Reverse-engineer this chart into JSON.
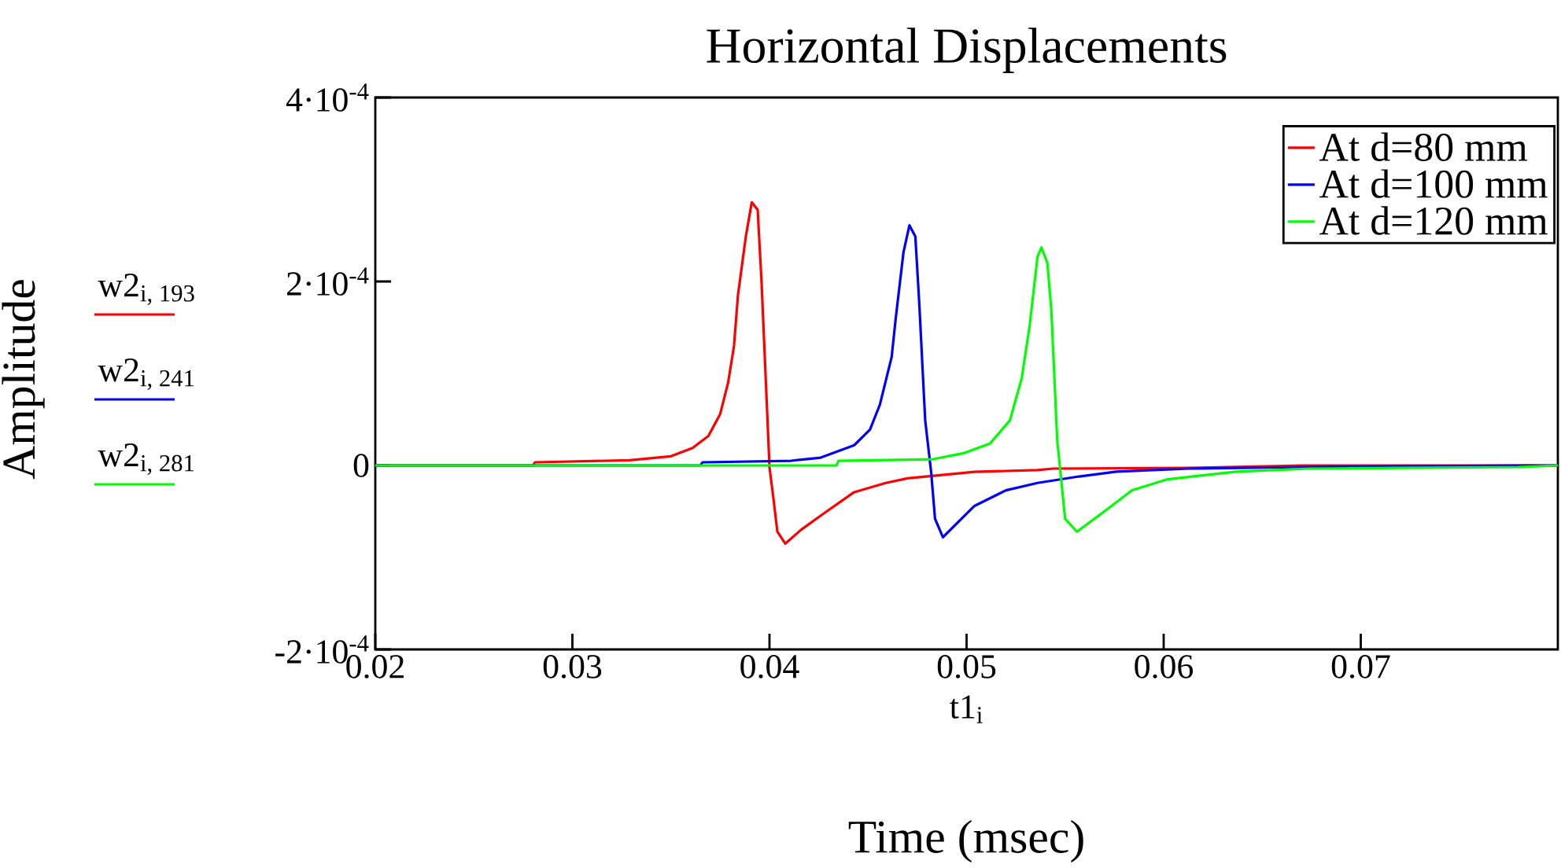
{
  "chart_data": {
    "type": "line",
    "title": "Horizontal Displacements",
    "xlabel": "t1$_{i}$",
    "ylabel": "Amplitude",
    "annotations": [
      "w2$_{i, 193}$",
      "w2$_{i, 241}$",
      "w2$_{i, 281}$",
      "Time (msec)"
    ],
    "xlim": [
      0.02,
      0.08
    ],
    "xticks": [
      0.02,
      0.03,
      0.04,
      0.05,
      0.06,
      0.07
    ],
    "ylim": [
      -0.0002,
      0.0004
    ],
    "yticks": [
      {
        "value": -0.0002,
        "label": "-2·10$^{-4}$"
      },
      {
        "value": 0,
        "label": "0"
      },
      {
        "value": 0.0002,
        "label": "2·10$^{-4}$"
      },
      {
        "value": 0.0004,
        "label": "4·10$^{-4}$"
      }
    ],
    "grid": false,
    "legend": "top right",
    "marker": "none",
    "line_style": "solid",
    "series": [
      {
        "name": "At d=80 mm",
        "color": "#ff0000",
        "x": [
          0.02,
          0.028,
          0.0281,
          0.0329,
          0.035,
          0.0361,
          0.0369,
          0.0375,
          0.0379,
          0.0382,
          0.0384,
          0.0388,
          0.0391,
          0.0394,
          0.0396,
          0.0399,
          0.04,
          0.0402,
          0.0404,
          0.0408,
          0.0416,
          0.0427,
          0.0443,
          0.0459,
          0.047,
          0.0504,
          0.0536,
          0.0544,
          0.0613,
          0.0671,
          0.0785,
          0.08
        ],
        "values": [
          0,
          0,
          3.4e-06,
          5.6e-06,
          1e-05,
          1.9e-05,
          3.2e-05,
          5.6e-05,
          9e-05,
          0.00013,
          0.000185,
          0.000249,
          0.000286,
          0.000278,
          0.000198,
          4.9e-05,
          -2e-06,
          -3.6e-05,
          -7.2e-05,
          -8.5e-05,
          -7e-05,
          -5.3e-05,
          -2.9e-05,
          -1.9e-05,
          -1.4e-05,
          -7e-06,
          -5e-06,
          -3.4e-06,
          -2.6e-06,
          0,
          0,
          0
        ]
      },
      {
        "name": "At d=100 mm",
        "color": "#0000ff",
        "x": [
          0.02,
          0.0365,
          0.0366,
          0.0411,
          0.0426,
          0.0443,
          0.0451,
          0.0456,
          0.0462,
          0.0464,
          0.0468,
          0.0471,
          0.0474,
          0.0476,
          0.0479,
          0.0482,
          0.0484,
          0.0488,
          0.0504,
          0.052,
          0.0536,
          0.0557,
          0.0576,
          0.0613,
          0.0674,
          0.0785,
          0.08
        ],
        "values": [
          0,
          0,
          3.4e-06,
          5.1e-06,
          8.5e-06,
          2.2e-05,
          3.9e-05,
          6.6e-05,
          0.000118,
          0.000159,
          0.000232,
          0.000261,
          0.000249,
          0.000176,
          4.9e-05,
          -6.8e-06,
          -5.8e-05,
          -7.8e-05,
          -4.4e-05,
          -2.7e-05,
          -1.9e-05,
          -1.2e-05,
          -6.8e-06,
          -3.4e-06,
          -1.7e-06,
          0,
          0
        ]
      },
      {
        "name": "At d=120 mm",
        "color": "#00ff00",
        "x": [
          0.02,
          0.0434,
          0.0435,
          0.0483,
          0.0499,
          0.0512,
          0.0522,
          0.0528,
          0.0532,
          0.0536,
          0.0538,
          0.0541,
          0.0543,
          0.0546,
          0.055,
          0.0556,
          0.0568,
          0.0584,
          0.0602,
          0.0637,
          0.0674,
          0.078,
          0.08
        ],
        "values": [
          0,
          0,
          5.1e-06,
          6.8e-06,
          1.36e-05,
          2.4e-05,
          4.9e-05,
          9.5e-05,
          0.000152,
          0.000227,
          0.000237,
          0.00022,
          0.000169,
          2.7e-05,
          -5.8e-05,
          -7.2e-05,
          -5.3e-05,
          -2.7e-05,
          -1.5e-05,
          -6.8e-06,
          -3.4e-06,
          -1.7e-06,
          0
        ]
      }
    ]
  }
}
